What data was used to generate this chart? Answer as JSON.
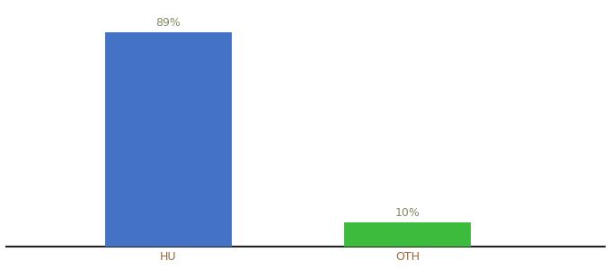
{
  "categories": [
    "HU",
    "OTH"
  ],
  "values": [
    89,
    10
  ],
  "bar_colors": [
    "#4472c4",
    "#3dbb3d"
  ],
  "labels": [
    "89%",
    "10%"
  ],
  "background_color": "#ffffff",
  "ylim": [
    0,
    100
  ],
  "bar_width": 0.18,
  "label_fontsize": 9,
  "tick_fontsize": 9,
  "tick_color": "#996633",
  "label_color": "#888866"
}
